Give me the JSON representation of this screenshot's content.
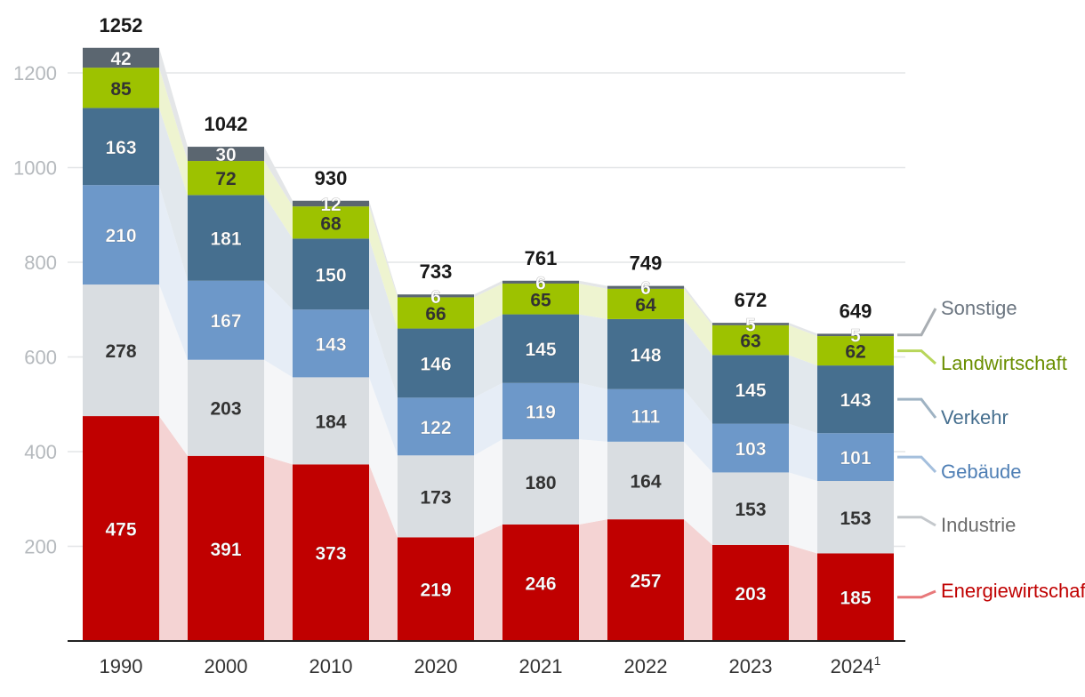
{
  "chart_data": {
    "type": "bar",
    "stacked": true,
    "categories": [
      "1990",
      "2000",
      "2010",
      "2020",
      "2021",
      "2022",
      "2023",
      "2024"
    ],
    "footnote_marker": {
      "category_index": 7,
      "marker": "1"
    },
    "totals": [
      1252,
      1042,
      930,
      733,
      761,
      749,
      672,
      649
    ],
    "series": [
      {
        "name": "Energiewirtschaft",
        "color": "#c00000",
        "band_color": "#f4d3d3",
        "label_color": "#ffffff",
        "legend_line": "#e8787a",
        "values": [
          475,
          391,
          373,
          219,
          246,
          257,
          203,
          185
        ]
      },
      {
        "name": "Industrie",
        "color": "#d9dde1",
        "band_color": "#f5f6f8",
        "label_color": "#333333",
        "legend_line": "#c4c8cc",
        "values": [
          278,
          203,
          184,
          173,
          180,
          164,
          153,
          153
        ]
      },
      {
        "name": "Gebäude",
        "color": "#6d98c9",
        "band_color": "#e6edf6",
        "label_color": "#ffffff",
        "legend_line": "#a4bfdd",
        "values": [
          210,
          167,
          143,
          122,
          119,
          111,
          103,
          101
        ]
      },
      {
        "name": "Verkehr",
        "color": "#466f8f",
        "band_color": "#e2e8ed",
        "label_color": "#ffffff",
        "legend_line": "#9fb3c3",
        "values": [
          163,
          181,
          150,
          146,
          145,
          148,
          145,
          143
        ]
      },
      {
        "name": "Landwirtschaft",
        "color": "#9dc200",
        "band_color": "#eef4d0",
        "label_color": "#333333",
        "legend_line": "#b8d65a",
        "values": [
          85,
          72,
          68,
          66,
          65,
          64,
          63,
          62
        ]
      },
      {
        "name": "Sonstige",
        "color": "#5b6670",
        "band_color": "#e4e6e8",
        "label_color": "#ffffff",
        "legend_line": "#a9aeb3",
        "values": [
          42,
          30,
          12,
          6,
          6,
          6,
          5,
          5
        ]
      }
    ],
    "y_ticks": [
      200,
      400,
      600,
      800,
      1000,
      1200
    ],
    "ylim": [
      0,
      1300
    ],
    "grid": true,
    "legend": "right",
    "title": "",
    "xlabel": "",
    "ylabel": ""
  }
}
